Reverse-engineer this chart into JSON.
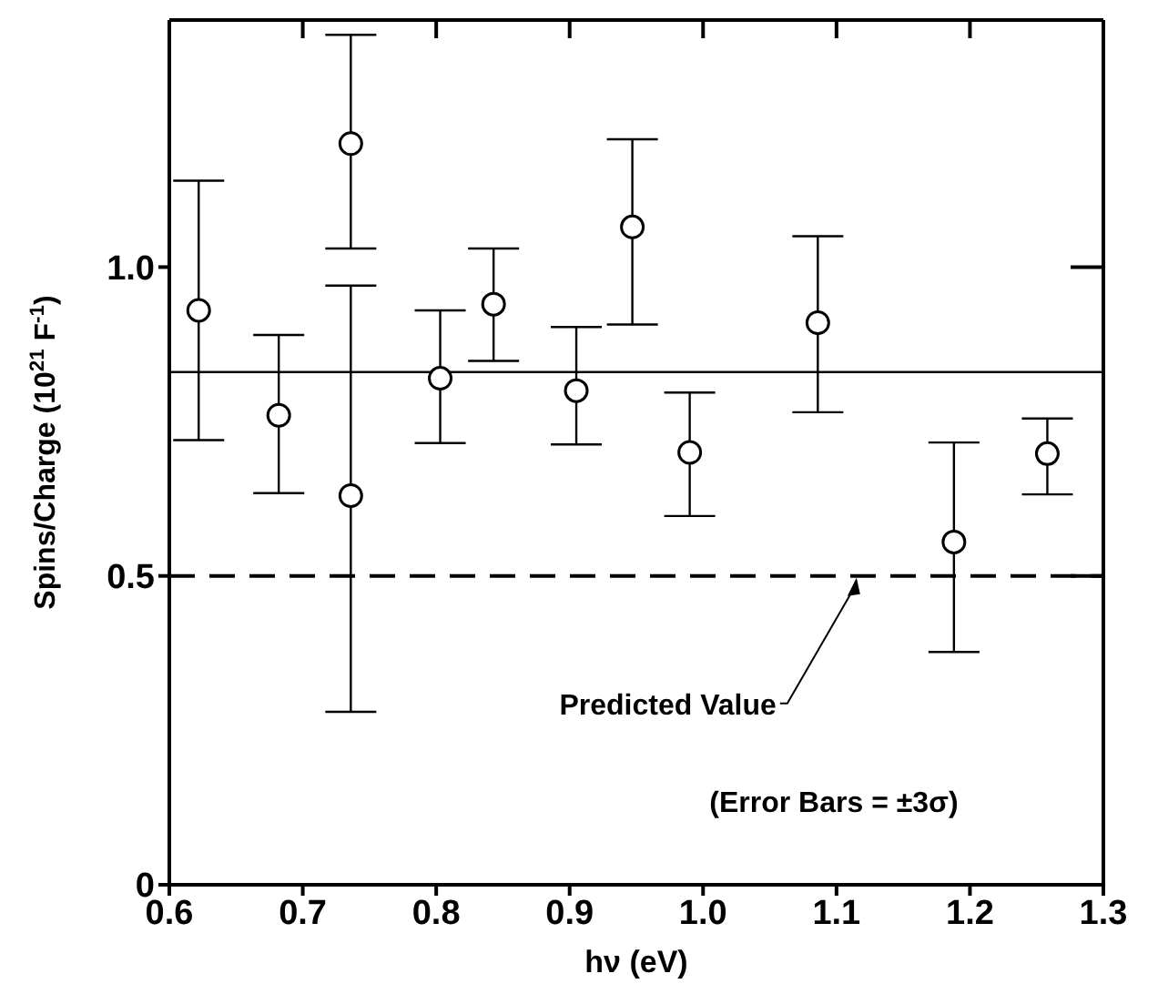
{
  "chart_data": {
    "type": "scatter",
    "xlabel": "hν (eV)",
    "ylabel": "Spins/Charge (10$^{21}$ F$^{-1}$)",
    "xlim": [
      0.6,
      1.3
    ],
    "xticks": [
      0.6,
      0.7,
      0.8,
      0.9,
      {
        "value": 1,
        "label": "1.0"
      },
      1.1,
      1.2,
      1.3
    ],
    "ylim": [
      0,
      1.4
    ],
    "yticks": [
      0,
      0.5,
      {
        "value": 1,
        "label": "1.0"
      }
    ],
    "grid": false,
    "legend": false,
    "marker": "circle",
    "series": [
      {
        "color": "#000000",
        "x": [
          0.622,
          0.682,
          0.736,
          0.736,
          0.803,
          0.843,
          0.905,
          0.947,
          0.99,
          1.086,
          1.188,
          1.258
        ],
        "values": [
          0.93,
          0.76,
          1.2,
          0.63,
          0.82,
          0.94,
          0.8,
          1.065,
          0.7,
          0.91,
          0.555,
          0.698
        ],
        "errors": [
          [
            0.72,
            1.14
          ],
          [
            0.634,
            0.89
          ],
          [
            1.03,
            1.376
          ],
          [
            0.28,
            0.97
          ],
          [
            0.715,
            0.93
          ],
          [
            0.848,
            1.03
          ],
          [
            0.713,
            0.903
          ],
          [
            0.907,
            1.207
          ],
          [
            0.597,
            0.797
          ],
          [
            0.765,
            1.05
          ],
          [
            0.377,
            0.716
          ],
          [
            0.632,
            0.755
          ]
        ]
      }
    ],
    "ref_lines": [
      {
        "axis": "y",
        "value": 0.83,
        "color": "#000000",
        "line_style": "solid"
      },
      {
        "axis": "y",
        "value": 0.5,
        "color": "#000000",
        "line_style": "dashed"
      }
    ],
    "annotations": [
      {
        "text": "Predicted Value",
        "x": 1.115,
        "y": 0.5
      },
      "(Error Bars = ±3σ)"
    ]
  }
}
